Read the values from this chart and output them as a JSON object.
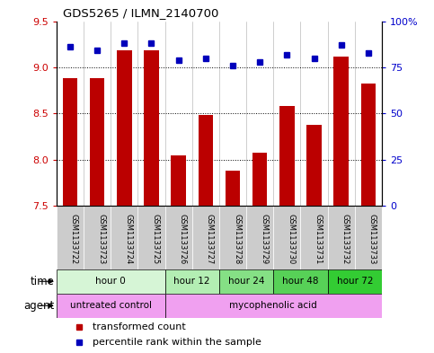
{
  "title": "GDS5265 / ILMN_2140700",
  "samples": [
    "GSM1133722",
    "GSM1133723",
    "GSM1133724",
    "GSM1133725",
    "GSM1133726",
    "GSM1133727",
    "GSM1133728",
    "GSM1133729",
    "GSM1133730",
    "GSM1133731",
    "GSM1133732",
    "GSM1133733"
  ],
  "bar_values": [
    8.88,
    8.88,
    9.18,
    9.18,
    8.05,
    8.48,
    7.88,
    8.08,
    8.58,
    8.38,
    9.12,
    8.82
  ],
  "dot_values": [
    86,
    84,
    88,
    88,
    79,
    80,
    76,
    78,
    82,
    80,
    87,
    83
  ],
  "ymin": 7.5,
  "ymax": 9.5,
  "yticks": [
    7.5,
    8.0,
    8.5,
    9.0,
    9.5
  ],
  "right_yticks": [
    0,
    25,
    50,
    75,
    100
  ],
  "right_ytick_labels": [
    "0",
    "25",
    "50",
    "75",
    "100%"
  ],
  "bar_color": "#bb0000",
  "dot_color": "#0000bb",
  "bar_width": 0.55,
  "time_groups": [
    {
      "label": "hour 0",
      "start": 0,
      "end": 4,
      "color": "#d6f5d6"
    },
    {
      "label": "hour 12",
      "start": 4,
      "end": 6,
      "color": "#b3eeb3"
    },
    {
      "label": "hour 24",
      "start": 6,
      "end": 8,
      "color": "#85e085"
    },
    {
      "label": "hour 48",
      "start": 8,
      "end": 10,
      "color": "#57d157"
    },
    {
      "label": "hour 72",
      "start": 10,
      "end": 12,
      "color": "#33cc33"
    }
  ],
  "agent_groups": [
    {
      "label": "untreated control",
      "start": 0,
      "end": 4,
      "color": "#f5aaee"
    },
    {
      "label": "mycophenolic acid",
      "start": 4,
      "end": 12,
      "color": "#f5aaee"
    }
  ],
  "legend_items": [
    {
      "label": "transformed count",
      "color": "#bb0000"
    },
    {
      "label": "percentile rank within the sample",
      "color": "#0000bb"
    }
  ],
  "sample_bg_color": "#cccccc",
  "left_tick_color": "#cc0000",
  "right_tick_color": "#0000cc",
  "time_label": "time",
  "agent_label": "agent"
}
